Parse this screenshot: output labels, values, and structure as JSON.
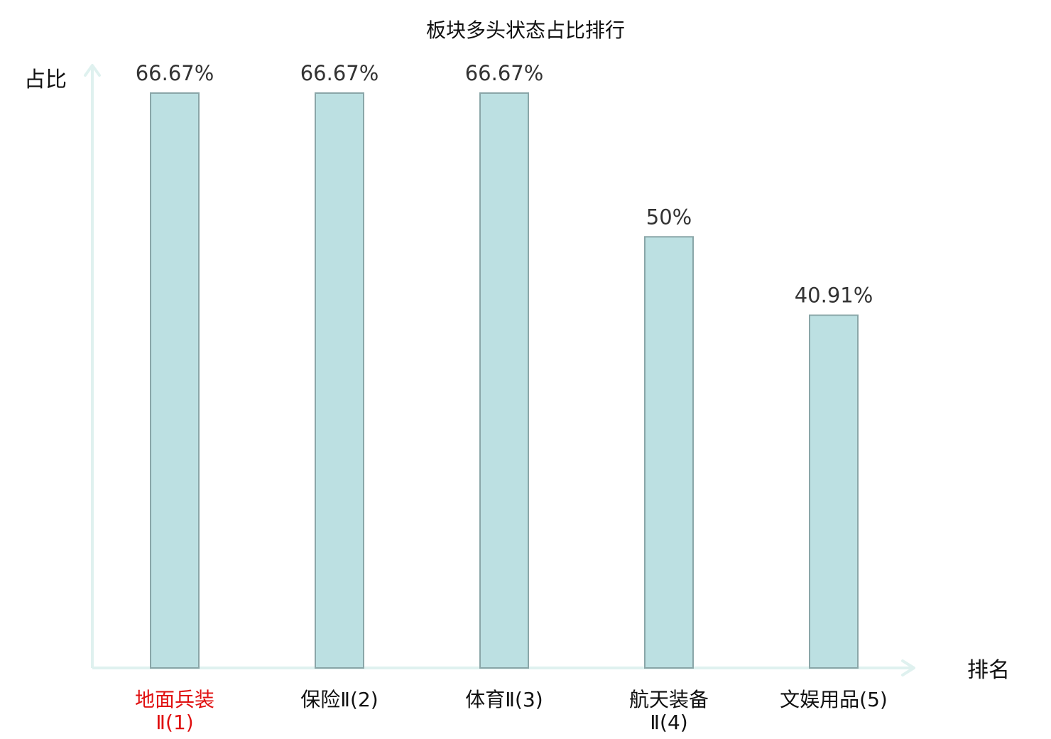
{
  "chart_data": {
    "type": "bar",
    "title": "板块多头状态占比排行",
    "ylabel": "占比",
    "xlabel": "排名",
    "categories": [
      {
        "lines": [
          "地面兵装",
          "Ⅱ(1)"
        ],
        "highlight": true
      },
      {
        "lines": [
          "保险Ⅱ(2)"
        ],
        "highlight": false
      },
      {
        "lines": [
          "体育Ⅱ(3)"
        ],
        "highlight": false
      },
      {
        "lines": [
          "航天装备",
          "Ⅱ(4)"
        ],
        "highlight": false
      },
      {
        "lines": [
          "文娱用品(5)"
        ],
        "highlight": false
      }
    ],
    "values": [
      66.67,
      66.67,
      66.67,
      50,
      40.91
    ],
    "value_labels": [
      "66.67%",
      "66.67%",
      "66.67%",
      "50%",
      "40.91%"
    ],
    "ylim": [
      0,
      66.67
    ],
    "grid": false,
    "colors": {
      "bar_fill": "#bce0e2",
      "bar_stroke": "#8aa6a8",
      "axis": "#dff1ef",
      "highlight_text": "#e01010",
      "normal_text": "#111111"
    }
  }
}
